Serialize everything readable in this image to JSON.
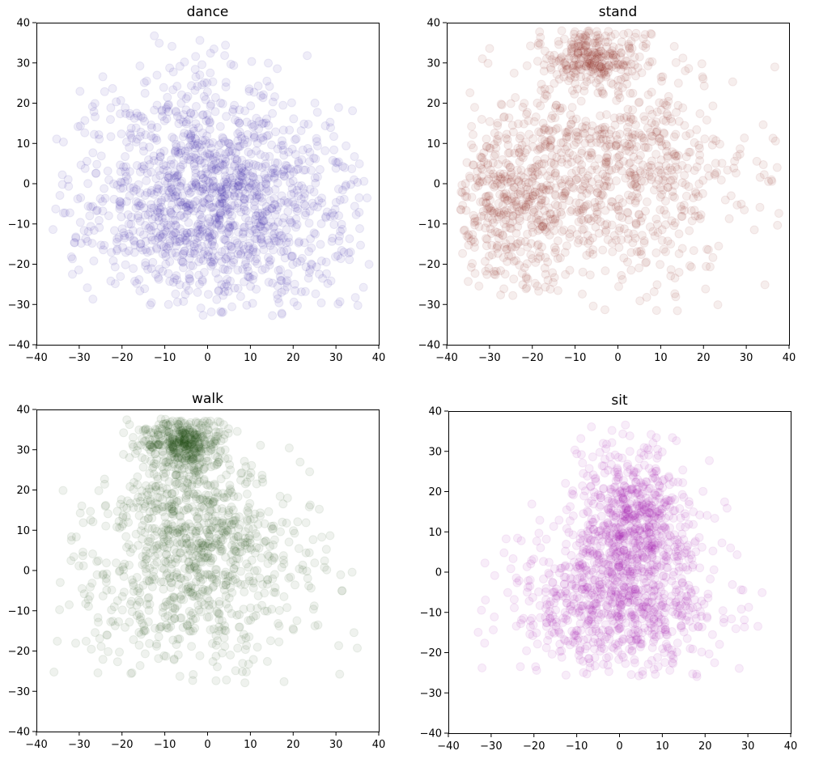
{
  "chart_data": [
    {
      "type": "scatter",
      "title": "dance",
      "color": "#1a0099",
      "xlim": [
        -40,
        40
      ],
      "ylim": [
        -40,
        40
      ],
      "xticks": [
        -40,
        -30,
        -20,
        -10,
        0,
        10,
        20,
        30,
        40
      ],
      "yticks": [
        -40,
        -30,
        -20,
        -10,
        0,
        10,
        20,
        30,
        40
      ],
      "xtick_labels": [
        "−40",
        "−30",
        "−20",
        "−10",
        "0",
        "10",
        "20",
        "30",
        "40"
      ],
      "ytick_labels": [
        "−40",
        "−30",
        "−20",
        "−10",
        "0",
        "10",
        "20",
        "30",
        "40"
      ],
      "marker_alpha": 0.05,
      "approx_density": {
        "clusters": [
          {
            "center": [
              3,
              -7
            ],
            "spread": [
              17,
              12
            ],
            "weight": 0.82
          },
          {
            "center": [
              -2,
              15
            ],
            "spread": [
              14,
              9
            ],
            "weight": 0.18
          }
        ],
        "x_extent": [
          -37,
          38
        ],
        "y_extent": [
          -33,
          37
        ]
      }
    },
    {
      "type": "scatter",
      "title": "stand",
      "color": "#7a0a05",
      "xlim": [
        -40,
        40
      ],
      "ylim": [
        -40,
        40
      ],
      "xticks": [
        -40,
        -30,
        -20,
        -10,
        0,
        10,
        20,
        30,
        40
      ],
      "yticks": [
        -40,
        -30,
        -20,
        -10,
        0,
        10,
        20,
        30,
        40
      ],
      "xtick_labels": [
        "−40",
        "−30",
        "−20",
        "−10",
        "0",
        "10",
        "20",
        "30",
        "40"
      ],
      "ytick_labels": [
        "−40",
        "−30",
        "−20",
        "−10",
        "0",
        "10",
        "20",
        "30",
        "40"
      ],
      "marker_alpha": 0.05,
      "approx_density": {
        "clusters": [
          {
            "center": [
              -6,
              32
            ],
            "spread": [
              6,
              4
            ],
            "weight": 0.18
          },
          {
            "center": [
              -2,
              2
            ],
            "spread": [
              16,
              14
            ],
            "weight": 0.6
          },
          {
            "center": [
              -25,
              -5
            ],
            "spread": [
              7,
              9
            ],
            "weight": 0.22
          }
        ],
        "x_extent": [
          -37,
          38
        ],
        "y_extent": [
          -32,
          38
        ]
      }
    },
    {
      "type": "scatter",
      "title": "walk",
      "color": "#1a4a0a",
      "xlim": [
        -40,
        40
      ],
      "ylim": [
        -40,
        40
      ],
      "xticks": [
        -40,
        -30,
        -20,
        -10,
        0,
        10,
        20,
        30,
        40
      ],
      "yticks": [
        -40,
        -30,
        -20,
        -10,
        0,
        10,
        20,
        30,
        40
      ],
      "xtick_labels": [
        "−40",
        "−30",
        "−20",
        "−10",
        "0",
        "10",
        "20",
        "30",
        "40"
      ],
      "ytick_labels": [
        "−40",
        "−30",
        "−20",
        "−10",
        "0",
        "10",
        "20",
        "30",
        "40"
      ],
      "marker_alpha": 0.05,
      "approx_density": {
        "clusters": [
          {
            "center": [
              -6,
              32
            ],
            "spread": [
              5,
              4
            ],
            "weight": 0.3
          },
          {
            "center": [
              -2,
              12
            ],
            "spread": [
              10,
              9
            ],
            "weight": 0.35
          },
          {
            "center": [
              -5,
              -5
            ],
            "spread": [
              16,
              11
            ],
            "weight": 0.35
          }
        ],
        "x_extent": [
          -36,
          36
        ],
        "y_extent": [
          -28,
          38
        ]
      }
    },
    {
      "type": "scatter",
      "title": "sit",
      "color": "#9b00a8",
      "xlim": [
        -40,
        40
      ],
      "ylim": [
        -40,
        40
      ],
      "xticks": [
        -40,
        -30,
        -20,
        -10,
        0,
        10,
        20,
        30,
        40
      ],
      "yticks": [
        -40,
        -30,
        -20,
        -10,
        0,
        10,
        20,
        30,
        40
      ],
      "xtick_labels": [
        "−40",
        "−30",
        "−20",
        "−10",
        "0",
        "10",
        "20",
        "30",
        "40"
      ],
      "ytick_labels": [
        "−40",
        "−30",
        "−20",
        "−10",
        "0",
        "10",
        "20",
        "30",
        "40"
      ],
      "marker_alpha": 0.05,
      "approx_density": {
        "clusters": [
          {
            "center": [
              3,
              12
            ],
            "spread": [
              7,
              10
            ],
            "weight": 0.5
          },
          {
            "center": [
              -5,
              -8
            ],
            "spread": [
              12,
              9
            ],
            "weight": 0.3
          },
          {
            "center": [
              8,
              -10
            ],
            "spread": [
              10,
              8
            ],
            "weight": 0.2
          }
        ],
        "x_extent": [
          -36,
          38
        ],
        "y_extent": [
          -26,
          38
        ]
      }
    }
  ]
}
